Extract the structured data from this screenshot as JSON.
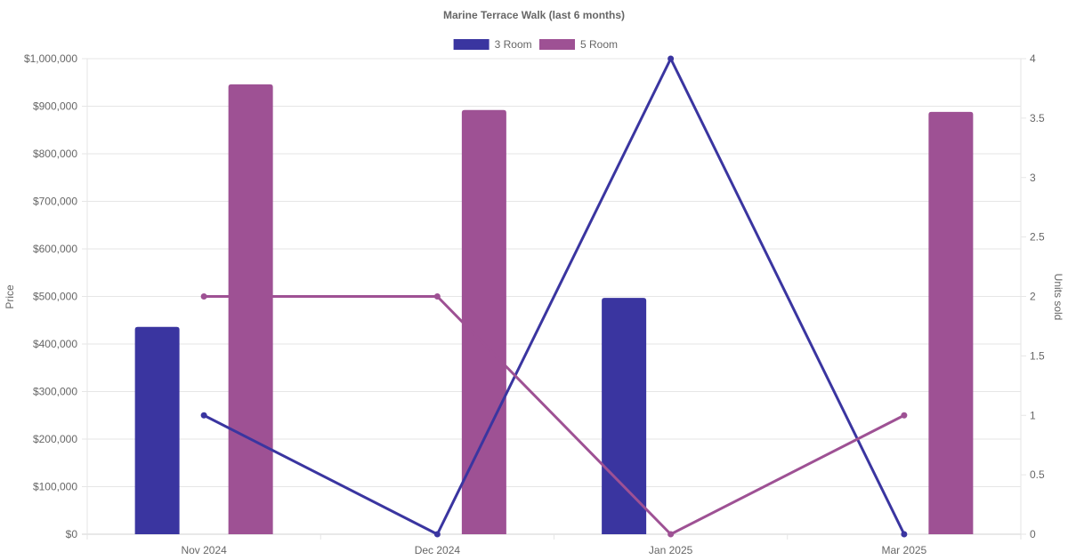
{
  "chart_data": {
    "type": "bar",
    "title": "Marine Terrace Walk (last 6 months)",
    "categories": [
      "Nov 2024",
      "Dec 2024",
      "Jan 2025",
      "Mar 2025"
    ],
    "y_left": {
      "label": "Price",
      "range": [
        0,
        1000000
      ],
      "ticks": [
        "$0",
        "$100,000",
        "$200,000",
        "$300,000",
        "$400,000",
        "$500,000",
        "$600,000",
        "$700,000",
        "$800,000",
        "$900,000",
        "$1,000,000"
      ]
    },
    "y_right": {
      "label": "Units sold",
      "range": [
        0,
        4
      ],
      "ticks": [
        "0",
        "0.5",
        "1",
        "1.5",
        "2",
        "2.5",
        "3",
        "3.5",
        "4"
      ]
    },
    "grid": true,
    "legend_position": "top",
    "series": [
      {
        "name": "3 Room",
        "color": "#3a35a0",
        "bar_values": [
          436000,
          null,
          497000,
          null
        ],
        "units_sold": [
          1,
          0,
          4,
          0
        ]
      },
      {
        "name": "5 Room",
        "color": "#9e5194",
        "bar_values": [
          946000,
          892000,
          null,
          888000
        ],
        "units_sold": [
          2,
          2,
          0,
          1
        ]
      }
    ]
  }
}
